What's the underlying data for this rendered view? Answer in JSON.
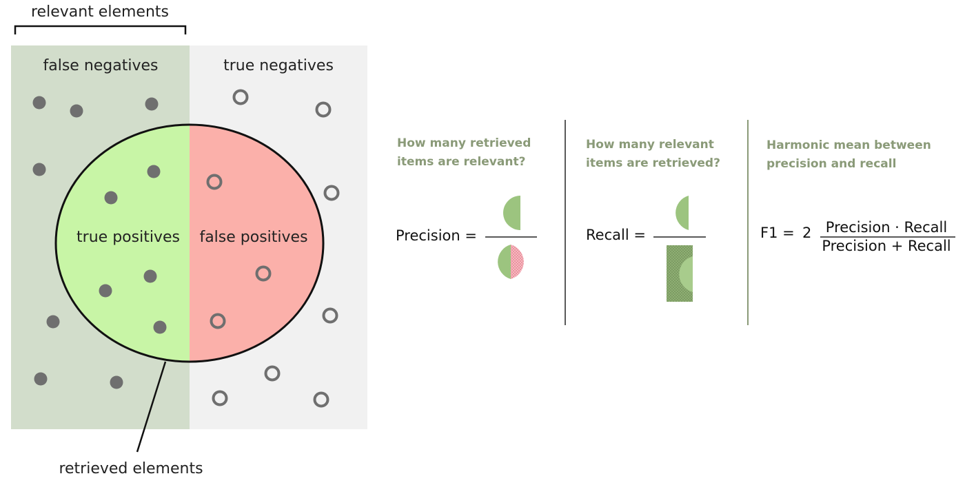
{
  "labels": {
    "relevant": "relevant elements",
    "false_negatives": "false negatives",
    "true_negatives": "true negatives",
    "true_positives": "true positives",
    "false_positives": "false positives",
    "retrieved": "retrieved elements"
  },
  "precision": {
    "question_line1": "How many retrieved",
    "question_line2": "items are relevant?",
    "label": "Precision ="
  },
  "recall": {
    "question_line1": "How many relevant",
    "question_line2": "items are retrieved?",
    "label": "Recall ="
  },
  "f1": {
    "question_line1": "Harmonic mean between",
    "question_line2": "precision and recall",
    "label": "F1 =",
    "factor": "2",
    "numerator": "Precision · Recall",
    "denominator": "Precision + Recall"
  },
  "colors": {
    "relevant_bg": "#d2ddcb",
    "irrelevant_bg": "#f1f1f1",
    "true_positive_fill": "#c8f5a6",
    "false_positive_fill": "#fbb0aa",
    "dot": "#6f6f6f",
    "question_text": "#8a9a78",
    "divider": "#8a9a78",
    "icon_green": "#9cc47f",
    "icon_red": "#f0a0a8"
  }
}
